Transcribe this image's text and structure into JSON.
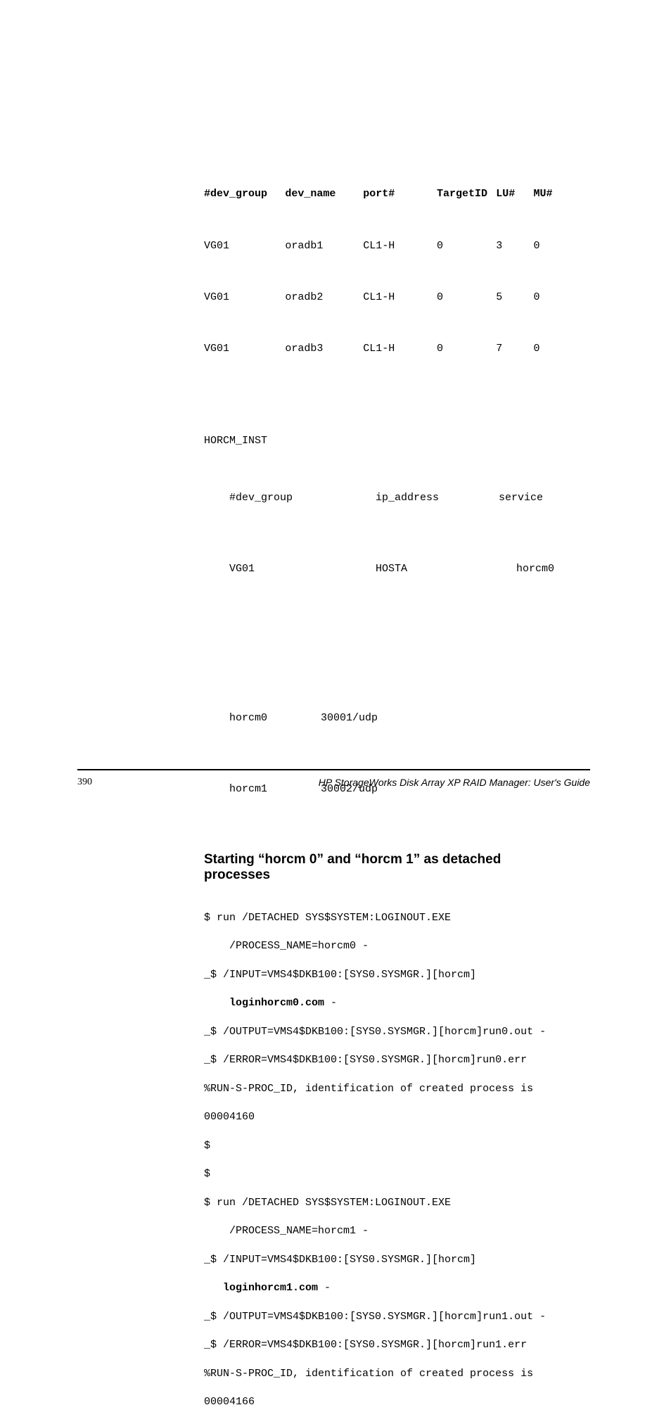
{
  "table": {
    "headers": {
      "dev_group": "#dev_group",
      "dev_name": "dev_name",
      "port": "port#",
      "target": "TargetID",
      "lu": "LU#",
      "mu": "MU#"
    },
    "rows": [
      {
        "dev_group": "VG01",
        "dev_name": "oradb1",
        "port": "CL1-H",
        "target": "0",
        "lu": "3",
        "mu": "0"
      },
      {
        "dev_group": "VG01",
        "dev_name": "oradb2",
        "port": "CL1-H",
        "target": "0",
        "lu": "5",
        "mu": "0"
      },
      {
        "dev_group": "VG01",
        "dev_name": "oradb3",
        "port": "CL1-H",
        "target": "0",
        "lu": "7",
        "mu": "0"
      }
    ]
  },
  "inst": {
    "line1": "HORCM_INST",
    "hdr": {
      "a": "#dev_group",
      "b": "ip_address",
      "c": "service"
    },
    "val": {
      "a": "VG01",
      "b": "HOSTA",
      "c": "horcm0"
    }
  },
  "ports": [
    {
      "name": "horcm0",
      "val": "30001/udp"
    },
    {
      "name": "horcm1",
      "val": "30002/udp"
    }
  ],
  "heading": "Starting  “horcm 0” and “horcm 1” as detached processes",
  "code": {
    "l1": "$ run /DETACHED SYS$SYSTEM:LOGINOUT.EXE",
    "l2": "    /PROCESS_NAME=horcm0 -",
    "l3": "_$ /INPUT=VMS4$DKB100:[SYS0.SYSMGR.][horcm]",
    "l4a": "    ",
    "l4b": "loginhorcm0.com",
    "l4c": " -",
    "l5": "_$ /OUTPUT=VMS4$DKB100:[SYS0.SYSMGR.][horcm]run0.out -",
    "l6": "_$ /ERROR=VMS4$DKB100:[SYS0.SYSMGR.][horcm]run0.err",
    "l7": "%RUN-S-PROC_ID, identification of created process is",
    "l8": "00004160",
    "l9": "$",
    "l10": "$",
    "l11": "$ run /DETACHED SYS$SYSTEM:LOGINOUT.EXE",
    "l12": "    /PROCESS_NAME=horcm1 -",
    "l13": "_$ /INPUT=VMS4$DKB100:[SYS0.SYSMGR.][horcm]",
    "l14a": "   ",
    "l14b": "loginhorcm1.com",
    "l14c": " -",
    "l15": "_$ /OUTPUT=VMS4$DKB100:[SYS0.SYSMGR.][horcm]run1.out -",
    "l16": "_$ /ERROR=VMS4$DKB100:[SYS0.SYSMGR.][horcm]run1.err",
    "l17": "%RUN-S-PROC_ID, identification of created process is",
    "l18": "00004166"
  },
  "footer": {
    "page": "390",
    "title": "HP StorageWorks Disk Array XP RAID Manager: User's Guide"
  }
}
